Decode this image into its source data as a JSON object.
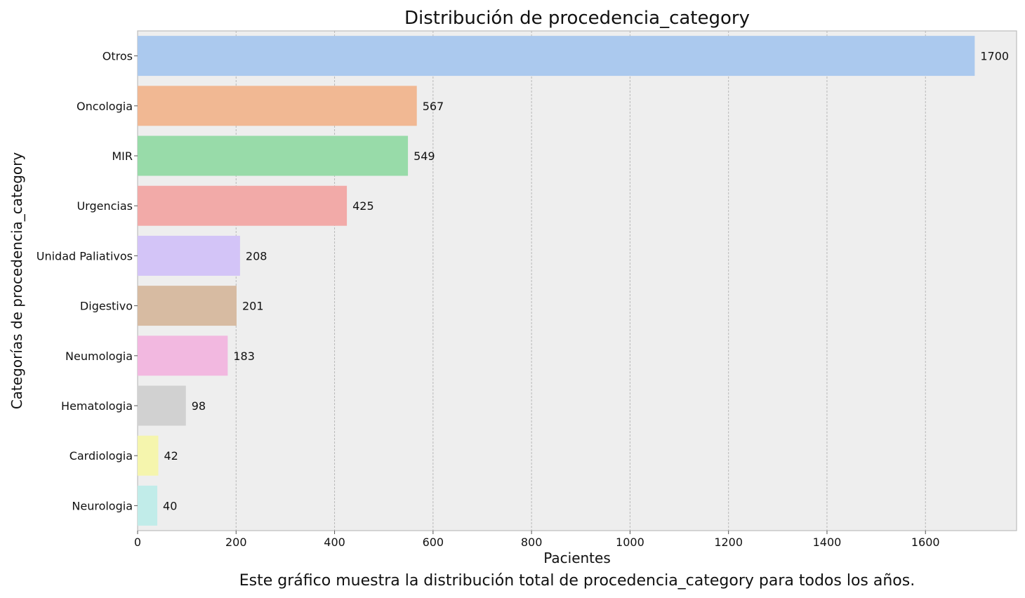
{
  "chart_data": {
    "type": "bar",
    "orientation": "horizontal",
    "title": "Distribución de procedencia_category",
    "xlabel": "Pacientes",
    "ylabel": "Categorías de procedencia_category",
    "caption": "Este gráfico muestra la distribución total de procedencia_category para todos los años.",
    "categories": [
      "Otros",
      "Oncologia",
      "MIR",
      "Urgencias",
      "Unidad Paliativos",
      "Digestivo",
      "Neumologia",
      "Hematologia",
      "Cardiologia",
      "Neurologia"
    ],
    "values": [
      1700,
      567,
      549,
      425,
      208,
      201,
      183,
      98,
      42,
      40
    ],
    "colors": [
      "#abc9ee",
      "#f1b893",
      "#98dba9",
      "#f2aaa8",
      "#d3c4f7",
      "#d7bba2",
      "#f2b8e0",
      "#d1d1d1",
      "#f5f5ad",
      "#c1ece9"
    ],
    "xlim": [
      0,
      1785
    ],
    "xticks": [
      0,
      200,
      400,
      600,
      800,
      1000,
      1200,
      1400,
      1600
    ],
    "grid": "x",
    "legend": "none"
  }
}
